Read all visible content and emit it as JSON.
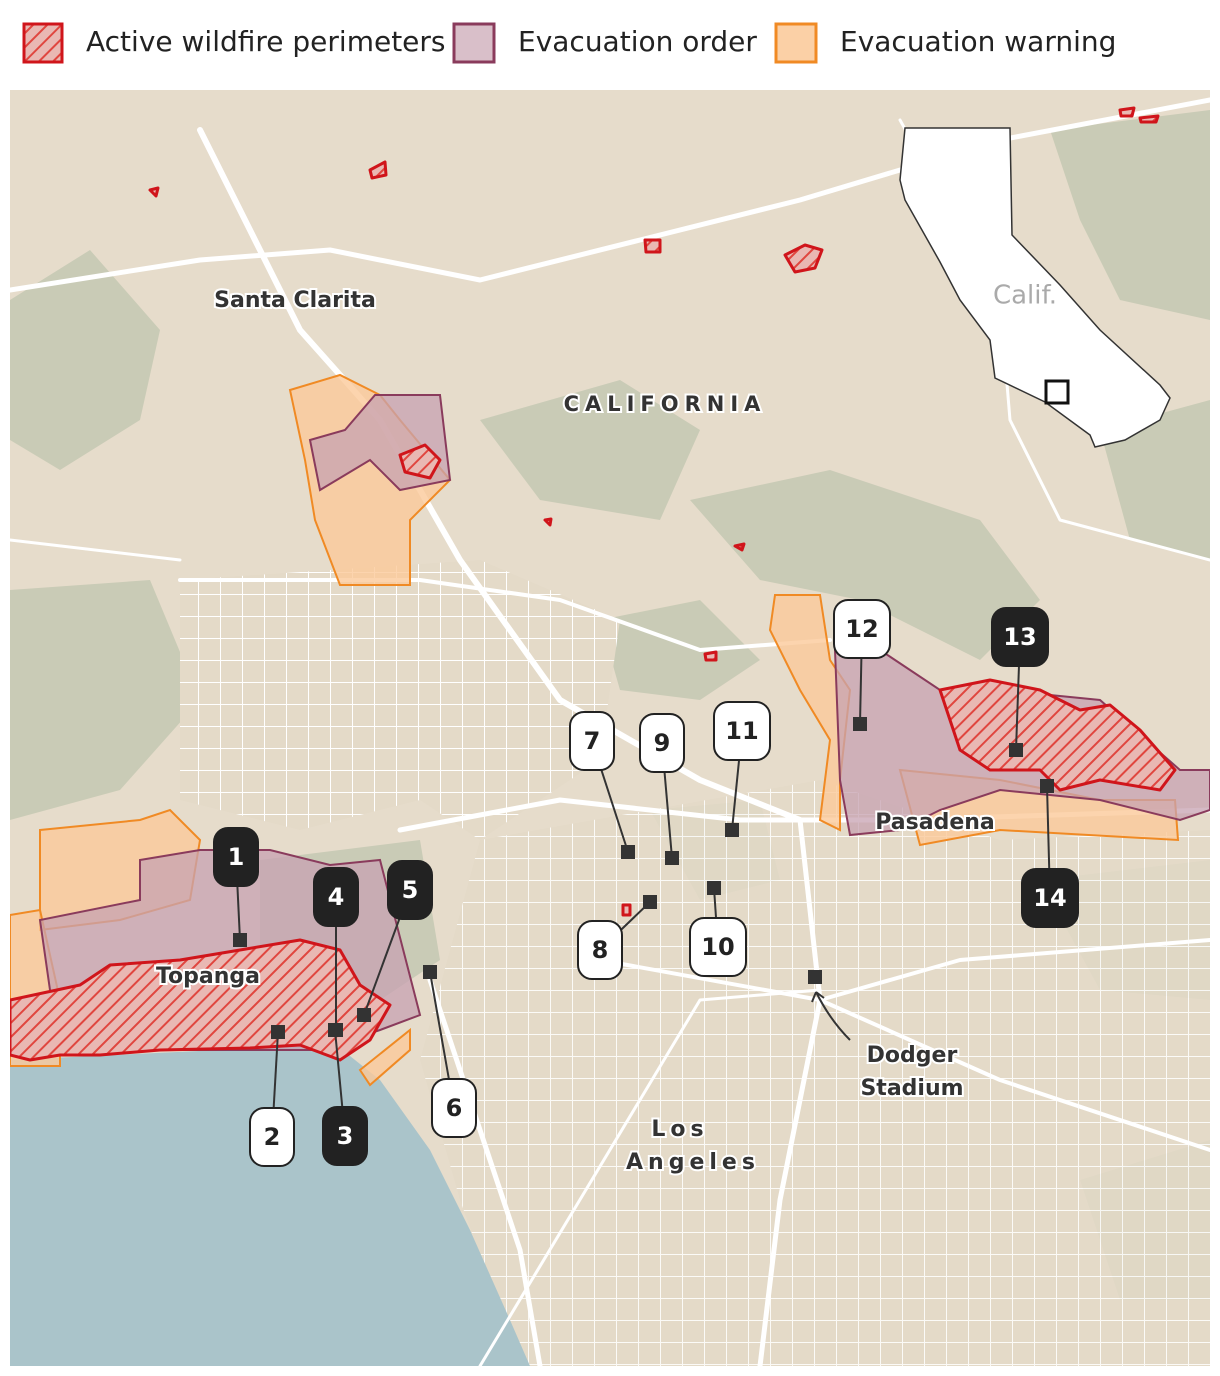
{
  "legend": {
    "items": [
      "Active wildfire perimeters",
      "Evacuation order",
      "Evacuation warning"
    ]
  },
  "places": {
    "santa_clarita": "Santa Clarita",
    "california": "CALIFORNIA",
    "topanga": "Topanga",
    "pasadena": "Pasadena",
    "los_angeles": [
      "Los",
      "Angeles"
    ],
    "dodger_stadium": [
      "Dodger",
      "Stadium"
    ]
  },
  "inset": {
    "label": "Calif."
  },
  "markers": [
    {
      "label": "1",
      "style": "dark"
    },
    {
      "label": "2",
      "style": "light"
    },
    {
      "label": "3",
      "style": "dark"
    },
    {
      "label": "4",
      "style": "dark"
    },
    {
      "label": "5",
      "style": "dark"
    },
    {
      "label": "6",
      "style": "light"
    },
    {
      "label": "7",
      "style": "light"
    },
    {
      "label": "8",
      "style": "light"
    },
    {
      "label": "9",
      "style": "light"
    },
    {
      "label": "10",
      "style": "light"
    },
    {
      "label": "11",
      "style": "light"
    },
    {
      "label": "12",
      "style": "light"
    },
    {
      "label": "13",
      "style": "dark"
    },
    {
      "label": "14",
      "style": "dark"
    }
  ]
}
